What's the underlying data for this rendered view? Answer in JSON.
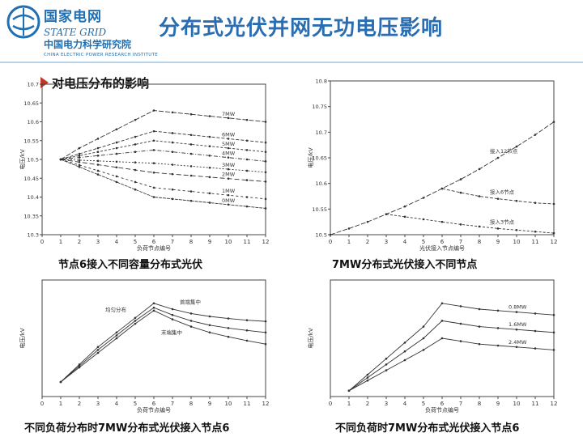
{
  "header": {
    "org_cn": "国家电网",
    "org_en": "STATE GRID",
    "inst_cn": "中国电力科学研究院",
    "inst_en": "CHINA ELECTRIC POWER RESEARCH INSTITUTE",
    "title": "分布式光伏并网无功电压影响"
  },
  "subtitle": "对电压分布的影响",
  "colors": {
    "brand": "#1f6fb2",
    "title": "#2a6db0",
    "bullet": "#c0392b"
  },
  "captions": [
    "节点6接入不同容量分布式光伏",
    "7MW分布式光伏接入不同节点",
    "不同负荷分布时7MW分布式光伏接入节点6",
    "不同负荷时7MW分布式光伏接入节点6"
  ],
  "chart_data": [
    {
      "type": "line",
      "xlabel": "负荷节点编号",
      "ylabel": "电压/kV",
      "x": [
        1,
        2,
        3,
        4,
        5,
        6,
        7,
        8,
        9,
        10,
        11,
        12
      ],
      "xlim": [
        0,
        12
      ],
      "ylim": [
        10.3,
        10.7
      ],
      "yticks": [
        10.3,
        10.35,
        10.4,
        10.45,
        10.5,
        10.55,
        10.6,
        10.65,
        10.7
      ],
      "series": [
        {
          "name": "7MW",
          "values": [
            10.5,
            10.53,
            10.555,
            10.58,
            10.605,
            10.63,
            10.625,
            10.62,
            10.615,
            10.61,
            10.605,
            10.6
          ]
        },
        {
          "name": "6MW",
          "values": [
            10.5,
            10.515,
            10.53,
            10.545,
            10.56,
            10.575,
            10.57,
            10.565,
            10.56,
            10.555,
            10.55,
            10.545
          ]
        },
        {
          "name": "5MW",
          "values": [
            10.5,
            10.51,
            10.52,
            10.53,
            10.54,
            10.55,
            10.545,
            10.54,
            10.535,
            10.53,
            10.525,
            10.52
          ]
        },
        {
          "name": "4MW",
          "values": [
            10.5,
            10.505,
            10.51,
            10.515,
            10.52,
            10.525,
            10.52,
            10.515,
            10.51,
            10.505,
            10.5,
            10.495
          ]
        },
        {
          "name": "3MW",
          "values": [
            10.5,
            10.498,
            10.496,
            10.494,
            10.492,
            10.49,
            10.486,
            10.482,
            10.478,
            10.474,
            10.47,
            10.466
          ]
        },
        {
          "name": "2MW",
          "values": [
            10.5,
            10.493,
            10.486,
            10.479,
            10.472,
            10.465,
            10.461,
            10.457,
            10.453,
            10.449,
            10.445,
            10.441
          ]
        },
        {
          "name": "1MW",
          "values": [
            10.5,
            10.485,
            10.47,
            10.455,
            10.44,
            10.425,
            10.42,
            10.415,
            10.41,
            10.405,
            10.4,
            10.395
          ]
        },
        {
          "name": "0MW",
          "values": [
            10.5,
            10.48,
            10.46,
            10.44,
            10.42,
            10.4,
            10.395,
            10.39,
            10.385,
            10.38,
            10.375,
            10.37
          ]
        }
      ]
    },
    {
      "type": "line",
      "xlabel": "光伏接入节点编号",
      "ylabel": "电压/kV",
      "x": [
        0,
        1,
        2,
        3,
        4,
        5,
        6,
        7,
        8,
        9,
        10,
        11,
        12
      ],
      "xlim": [
        0,
        12
      ],
      "ylim": [
        10.5,
        10.8
      ],
      "yticks": [
        10.5,
        10.55,
        10.6,
        10.65,
        10.7,
        10.75,
        10.8
      ],
      "series": [
        {
          "name": "接入12节点",
          "values": [
            10.5,
            10.512,
            10.525,
            10.54,
            10.555,
            10.572,
            10.59,
            10.608,
            10.628,
            10.65,
            10.672,
            10.695,
            10.72
          ]
        },
        {
          "name": "接入6节点",
          "values": [
            null,
            null,
            null,
            null,
            null,
            null,
            10.59,
            10.582,
            10.575,
            10.57,
            10.566,
            10.562,
            10.56
          ]
        },
        {
          "name": "接入3节点",
          "values": [
            null,
            null,
            null,
            10.54,
            10.535,
            10.53,
            10.525,
            10.52,
            10.516,
            10.512,
            10.509,
            10.506,
            10.503
          ]
        }
      ]
    },
    {
      "type": "line",
      "xlabel": "负荷节点编号",
      "ylabel": "电压/kV",
      "x": [
        1,
        2,
        3,
        4,
        5,
        6,
        7,
        8,
        9,
        10,
        11,
        12
      ],
      "xlim": [
        0,
        12
      ],
      "ylim": [
        10.3,
        10.7
      ],
      "series": [
        {
          "name": "均匀分布",
          "values": [
            10.35,
            10.41,
            10.47,
            10.52,
            10.57,
            10.62,
            10.6,
            10.585,
            10.575,
            10.568,
            10.562,
            10.558
          ]
        },
        {
          "name": "末端集中",
          "values": [
            10.35,
            10.405,
            10.46,
            10.51,
            10.56,
            10.605,
            10.58,
            10.56,
            10.545,
            10.535,
            10.527,
            10.52
          ]
        },
        {
          "name": "首端集中",
          "values": [
            10.35,
            10.4,
            10.45,
            10.5,
            10.55,
            10.595,
            10.565,
            10.54,
            10.52,
            10.505,
            10.492,
            10.48
          ]
        }
      ]
    },
    {
      "type": "line",
      "xlabel": "负荷节点编号",
      "ylabel": "电压/kV",
      "x": [
        1,
        2,
        3,
        4,
        5,
        6,
        7,
        8,
        9,
        10,
        11,
        12
      ],
      "xlim": [
        0,
        12
      ],
      "ylim": [
        10.3,
        10.7
      ],
      "series": [
        {
          "name": "0.8MW",
          "values": [
            10.32,
            10.375,
            10.43,
            10.485,
            10.54,
            10.62,
            10.61,
            10.6,
            10.595,
            10.59,
            10.585,
            10.58
          ]
        },
        {
          "name": "1.6MW",
          "values": [
            10.32,
            10.365,
            10.41,
            10.455,
            10.5,
            10.56,
            10.55,
            10.54,
            10.535,
            10.53,
            10.525,
            10.52
          ]
        },
        {
          "name": "2.4MW",
          "values": [
            10.32,
            10.355,
            10.39,
            10.425,
            10.46,
            10.5,
            10.49,
            10.48,
            10.475,
            10.47,
            10.465,
            10.46
          ]
        }
      ]
    }
  ]
}
